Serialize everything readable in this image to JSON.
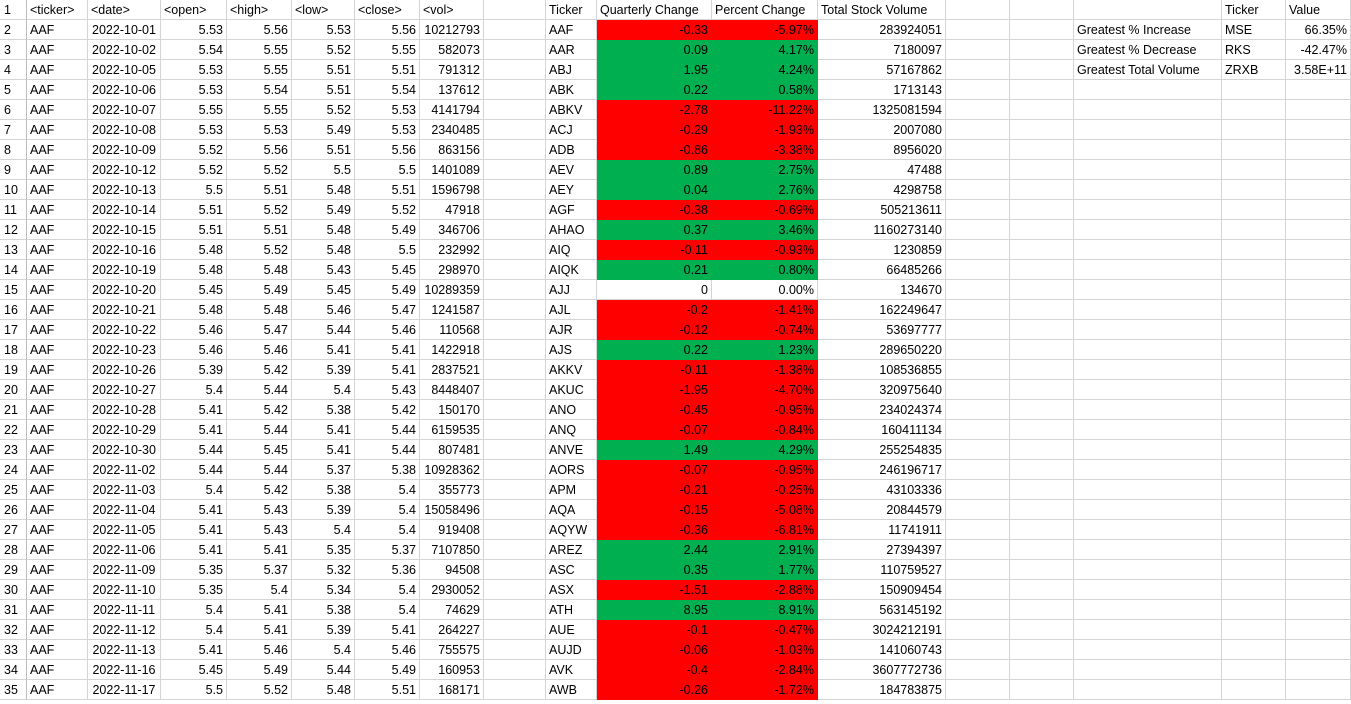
{
  "colors": {
    "positive": "#00b050",
    "negative": "#ff0000",
    "zero": "#ffffff",
    "grid": "#d4d4d4"
  },
  "headers": {
    "raw": [
      "<ticker>",
      "<date>",
      "<open>",
      "<high>",
      "<low>",
      "<close>",
      "<vol>"
    ],
    "summary": [
      "Ticker",
      "Quarterly Change",
      "Percent Change",
      "Total Stock Volume"
    ],
    "greatest": [
      "",
      "Ticker",
      "Value"
    ]
  },
  "rows": [
    {
      "n": "2",
      "raw": [
        "AAF",
        "2022-10-01",
        "5.53",
        "5.56",
        "5.53",
        "5.56",
        "10212793"
      ],
      "sum": [
        "AAF",
        "-0.33",
        "-5.97%",
        "283924051"
      ],
      "sign": "neg"
    },
    {
      "n": "3",
      "raw": [
        "AAF",
        "2022-10-02",
        "5.54",
        "5.55",
        "5.52",
        "5.55",
        "582073"
      ],
      "sum": [
        "AAR",
        "0.09",
        "4.17%",
        "7180097"
      ],
      "sign": "pos"
    },
    {
      "n": "4",
      "raw": [
        "AAF",
        "2022-10-05",
        "5.53",
        "5.55",
        "5.51",
        "5.51",
        "791312"
      ],
      "sum": [
        "ABJ",
        "1.95",
        "4.24%",
        "57167862"
      ],
      "sign": "pos"
    },
    {
      "n": "5",
      "raw": [
        "AAF",
        "2022-10-06",
        "5.53",
        "5.54",
        "5.51",
        "5.54",
        "137612"
      ],
      "sum": [
        "ABK",
        "0.22",
        "0.58%",
        "1713143"
      ],
      "sign": "pos"
    },
    {
      "n": "6",
      "raw": [
        "AAF",
        "2022-10-07",
        "5.55",
        "5.55",
        "5.52",
        "5.53",
        "4141794"
      ],
      "sum": [
        "ABKV",
        "-2.78",
        "-11.22%",
        "1325081594"
      ],
      "sign": "neg"
    },
    {
      "n": "7",
      "raw": [
        "AAF",
        "2022-10-08",
        "5.53",
        "5.53",
        "5.49",
        "5.53",
        "2340485"
      ],
      "sum": [
        "ACJ",
        "-0.29",
        "-1.93%",
        "2007080"
      ],
      "sign": "neg"
    },
    {
      "n": "8",
      "raw": [
        "AAF",
        "2022-10-09",
        "5.52",
        "5.56",
        "5.51",
        "5.56",
        "863156"
      ],
      "sum": [
        "ADB",
        "-0.86",
        "-3.38%",
        "8956020"
      ],
      "sign": "neg"
    },
    {
      "n": "9",
      "raw": [
        "AAF",
        "2022-10-12",
        "5.52",
        "5.52",
        "5.5",
        "5.5",
        "1401089"
      ],
      "sum": [
        "AEV",
        "0.89",
        "2.75%",
        "47488"
      ],
      "sign": "pos"
    },
    {
      "n": "10",
      "raw": [
        "AAF",
        "2022-10-13",
        "5.5",
        "5.51",
        "5.48",
        "5.51",
        "1596798"
      ],
      "sum": [
        "AEY",
        "0.04",
        "2.76%",
        "4298758"
      ],
      "sign": "pos"
    },
    {
      "n": "11",
      "raw": [
        "AAF",
        "2022-10-14",
        "5.51",
        "5.52",
        "5.49",
        "5.52",
        "47918"
      ],
      "sum": [
        "AGF",
        "-0.38",
        "-0.69%",
        "505213611"
      ],
      "sign": "neg"
    },
    {
      "n": "12",
      "raw": [
        "AAF",
        "2022-10-15",
        "5.51",
        "5.51",
        "5.48",
        "5.49",
        "346706"
      ],
      "sum": [
        "AHAO",
        "0.37",
        "3.46%",
        "1160273140"
      ],
      "sign": "pos"
    },
    {
      "n": "13",
      "raw": [
        "AAF",
        "2022-10-16",
        "5.48",
        "5.52",
        "5.48",
        "5.5",
        "232992"
      ],
      "sum": [
        "AIQ",
        "-0.11",
        "-0.93%",
        "1230859"
      ],
      "sign": "neg"
    },
    {
      "n": "14",
      "raw": [
        "AAF",
        "2022-10-19",
        "5.48",
        "5.48",
        "5.43",
        "5.45",
        "298970"
      ],
      "sum": [
        "AIQK",
        "0.21",
        "0.80%",
        "66485266"
      ],
      "sign": "pos"
    },
    {
      "n": "15",
      "raw": [
        "AAF",
        "2022-10-20",
        "5.45",
        "5.49",
        "5.45",
        "5.49",
        "10289359"
      ],
      "sum": [
        "AJJ",
        "0",
        "0.00%",
        "134670"
      ],
      "sign": "zero"
    },
    {
      "n": "16",
      "raw": [
        "AAF",
        "2022-10-21",
        "5.48",
        "5.48",
        "5.46",
        "5.47",
        "1241587"
      ],
      "sum": [
        "AJL",
        "-0.2",
        "-1.41%",
        "162249647"
      ],
      "sign": "neg"
    },
    {
      "n": "17",
      "raw": [
        "AAF",
        "2022-10-22",
        "5.46",
        "5.47",
        "5.44",
        "5.46",
        "110568"
      ],
      "sum": [
        "AJR",
        "-0.12",
        "-0.74%",
        "53697777"
      ],
      "sign": "neg"
    },
    {
      "n": "18",
      "raw": [
        "AAF",
        "2022-10-23",
        "5.46",
        "5.46",
        "5.41",
        "5.41",
        "1422918"
      ],
      "sum": [
        "AJS",
        "0.22",
        "1.23%",
        "289650220"
      ],
      "sign": "pos"
    },
    {
      "n": "19",
      "raw": [
        "AAF",
        "2022-10-26",
        "5.39",
        "5.42",
        "5.39",
        "5.41",
        "2837521"
      ],
      "sum": [
        "AKKV",
        "-0.11",
        "-1.38%",
        "108536855"
      ],
      "sign": "neg"
    },
    {
      "n": "20",
      "raw": [
        "AAF",
        "2022-10-27",
        "5.4",
        "5.44",
        "5.4",
        "5.43",
        "8448407"
      ],
      "sum": [
        "AKUC",
        "-1.95",
        "-4.70%",
        "320975640"
      ],
      "sign": "neg"
    },
    {
      "n": "21",
      "raw": [
        "AAF",
        "2022-10-28",
        "5.41",
        "5.42",
        "5.38",
        "5.42",
        "150170"
      ],
      "sum": [
        "ANO",
        "-0.45",
        "-0.95%",
        "234024374"
      ],
      "sign": "neg"
    },
    {
      "n": "22",
      "raw": [
        "AAF",
        "2022-10-29",
        "5.41",
        "5.44",
        "5.41",
        "5.44",
        "6159535"
      ],
      "sum": [
        "ANQ",
        "-0.07",
        "-0.84%",
        "160411134"
      ],
      "sign": "neg"
    },
    {
      "n": "23",
      "raw": [
        "AAF",
        "2022-10-30",
        "5.44",
        "5.45",
        "5.41",
        "5.44",
        "807481"
      ],
      "sum": [
        "ANVE",
        "1.49",
        "4.29%",
        "255254835"
      ],
      "sign": "pos"
    },
    {
      "n": "24",
      "raw": [
        "AAF",
        "2022-11-02",
        "5.44",
        "5.44",
        "5.37",
        "5.38",
        "10928362"
      ],
      "sum": [
        "AORS",
        "-0.07",
        "-0.95%",
        "246196717"
      ],
      "sign": "neg"
    },
    {
      "n": "25",
      "raw": [
        "AAF",
        "2022-11-03",
        "5.4",
        "5.42",
        "5.38",
        "5.4",
        "355773"
      ],
      "sum": [
        "APM",
        "-0.21",
        "-0.25%",
        "43103336"
      ],
      "sign": "neg"
    },
    {
      "n": "26",
      "raw": [
        "AAF",
        "2022-11-04",
        "5.41",
        "5.43",
        "5.39",
        "5.4",
        "15058496"
      ],
      "sum": [
        "AQA",
        "-0.15",
        "-5.08%",
        "20844579"
      ],
      "sign": "neg"
    },
    {
      "n": "27",
      "raw": [
        "AAF",
        "2022-11-05",
        "5.41",
        "5.43",
        "5.4",
        "5.4",
        "919408"
      ],
      "sum": [
        "AQYW",
        "-0.36",
        "-6.81%",
        "11741911"
      ],
      "sign": "neg"
    },
    {
      "n": "28",
      "raw": [
        "AAF",
        "2022-11-06",
        "5.41",
        "5.41",
        "5.35",
        "5.37",
        "7107850"
      ],
      "sum": [
        "AREZ",
        "2.44",
        "2.91%",
        "27394397"
      ],
      "sign": "pos"
    },
    {
      "n": "29",
      "raw": [
        "AAF",
        "2022-11-09",
        "5.35",
        "5.37",
        "5.32",
        "5.36",
        "94508"
      ],
      "sum": [
        "ASC",
        "0.35",
        "1.77%",
        "110759527"
      ],
      "sign": "pos"
    },
    {
      "n": "30",
      "raw": [
        "AAF",
        "2022-11-10",
        "5.35",
        "5.4",
        "5.34",
        "5.4",
        "2930052"
      ],
      "sum": [
        "ASX",
        "-1.51",
        "-2.88%",
        "150909454"
      ],
      "sign": "neg"
    },
    {
      "n": "31",
      "raw": [
        "AAF",
        "2022-11-11",
        "5.4",
        "5.41",
        "5.38",
        "5.4",
        "74629"
      ],
      "sum": [
        "ATH",
        "8.95",
        "8.91%",
        "563145192"
      ],
      "sign": "pos"
    },
    {
      "n": "32",
      "raw": [
        "AAF",
        "2022-11-12",
        "5.4",
        "5.41",
        "5.39",
        "5.41",
        "264227"
      ],
      "sum": [
        "AUE",
        "-0.1",
        "-0.47%",
        "3024212191"
      ],
      "sign": "neg"
    },
    {
      "n": "33",
      "raw": [
        "AAF",
        "2022-11-13",
        "5.41",
        "5.46",
        "5.4",
        "5.46",
        "755575"
      ],
      "sum": [
        "AUJD",
        "-0.06",
        "-1.03%",
        "141060743"
      ],
      "sign": "neg"
    },
    {
      "n": "34",
      "raw": [
        "AAF",
        "2022-11-16",
        "5.45",
        "5.49",
        "5.44",
        "5.49",
        "160953"
      ],
      "sum": [
        "AVK",
        "-0.4",
        "-2.84%",
        "3607772736"
      ],
      "sign": "neg"
    },
    {
      "n": "35",
      "raw": [
        "AAF",
        "2022-11-17",
        "5.5",
        "5.52",
        "5.48",
        "5.51",
        "168171"
      ],
      "sum": [
        "AWB",
        "-0.26",
        "-1.72%",
        "184783875"
      ],
      "sign": "neg"
    }
  ],
  "greatest": [
    {
      "label": "Greatest % Increase",
      "ticker": "MSE",
      "value": "66.35%"
    },
    {
      "label": "Greatest % Decrease",
      "ticker": "RKS",
      "value": "-42.47%"
    },
    {
      "label": "Greatest Total Volume",
      "ticker": "ZRXB",
      "value": "3.58E+11"
    }
  ],
  "first_row_number": "1"
}
